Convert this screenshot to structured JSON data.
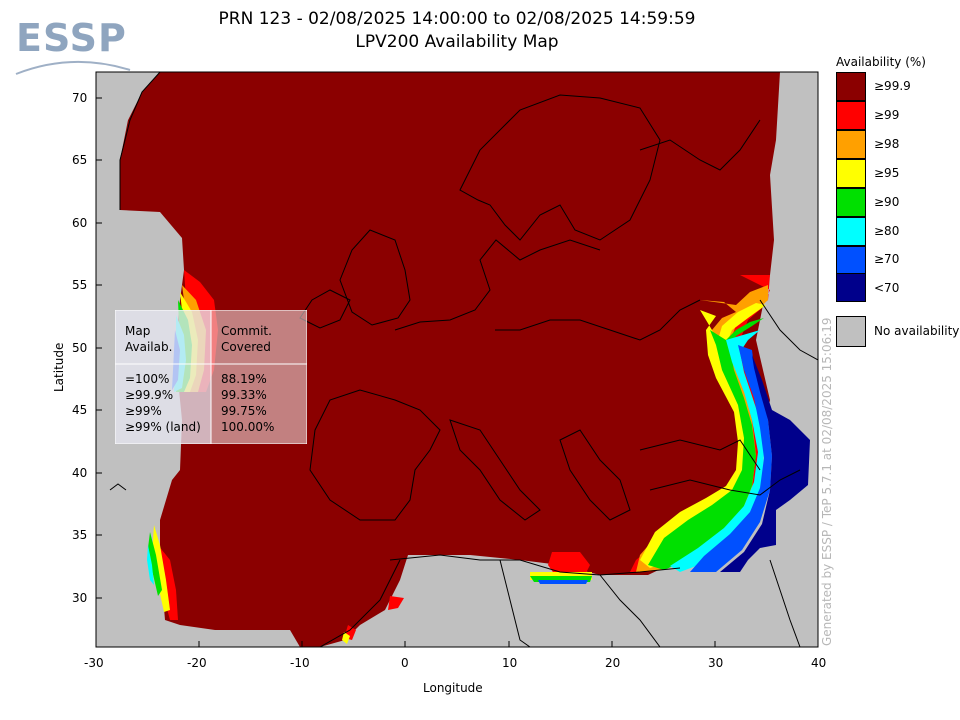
{
  "title_line1": "PRN 123 - 02/08/2025 14:00:00 to 02/08/2025 14:59:59",
  "title_line2": "LPV200 Availability Map",
  "logo": "ESSP",
  "xlabel": "Longitude",
  "ylabel": "Latitude",
  "x_ticks": [
    "-30",
    "-20",
    "-10",
    "0",
    "10",
    "20",
    "30",
    "40"
  ],
  "y_ticks": [
    "70",
    "65",
    "60",
    "55",
    "50",
    "45",
    "40",
    "35",
    "30"
  ],
  "legend": {
    "title": "Availability (%)",
    "items": [
      {
        "label": "≥99.9",
        "color": "#8b0000"
      },
      {
        "label": "≥99",
        "color": "#ff0000"
      },
      {
        "label": "≥98",
        "color": "#ffa000"
      },
      {
        "label": "≥95",
        "color": "#ffff00"
      },
      {
        "label": "≥90",
        "color": "#00e000"
      },
      {
        "label": "≥80",
        "color": "#00ffff"
      },
      {
        "label": "≥70",
        "color": "#0050ff"
      },
      {
        "label": "<70",
        "color": "#00008b"
      }
    ],
    "no_avail_label": "No availability",
    "no_avail_color": "#c0c0c0"
  },
  "stats": {
    "col1_header": [
      "Map",
      "Availab."
    ],
    "col2_header": [
      "Commit.",
      "Covered"
    ],
    "rows": [
      {
        "label": "=100%",
        "value": "88.19%"
      },
      {
        "label": "≥99.9%",
        "value": "99.33%"
      },
      {
        "label": "≥99%",
        "value": "99.75%"
      },
      {
        "label": "≥99% (land)",
        "value": "100.00%"
      }
    ]
  },
  "watermark": "Generated by ESSP / TeP 5.7.1 at 02/08/2025 15:06:19",
  "chart_data": {
    "type": "heatmap",
    "title": "PRN 123 - 02/08/2025 14:00:00 to 02/08/2025 14:59:59",
    "subtitle": "LPV200 Availability Map",
    "xlabel": "Longitude",
    "ylabel": "Latitude",
    "xlim": [
      -30,
      40
    ],
    "ylim": [
      26,
      72
    ],
    "x_ticks": [
      -30,
      -20,
      -10,
      0,
      10,
      20,
      30,
      40
    ],
    "y_ticks": [
      30,
      35,
      40,
      45,
      50,
      55,
      60,
      65,
      70
    ],
    "legend_placement": "right",
    "dominant_value": "≥99.9"
  }
}
